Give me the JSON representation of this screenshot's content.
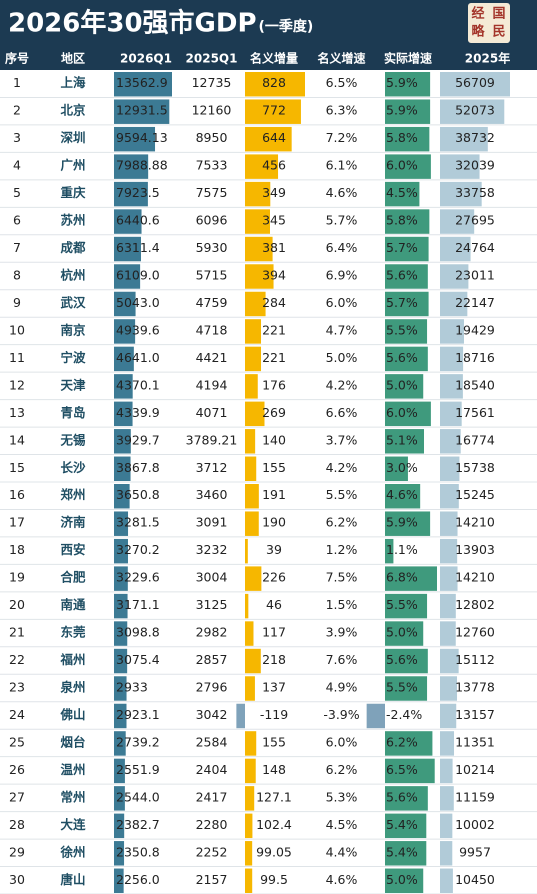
{
  "header": {
    "title": "2026年30强市GDP",
    "subtitle": "(一季度)",
    "logo": [
      "经",
      "国",
      "略",
      "民"
    ]
  },
  "table": {
    "columns": [
      "序号",
      "地区",
      "2026Q1",
      "2025Q1",
      "名义增量",
      "名义增速",
      "实际增速",
      "2025年"
    ],
    "rows": [
      [
        "1",
        "上海",
        "13562.9",
        "12735",
        "828",
        "6.5%",
        "5.9%",
        "56709"
      ],
      [
        "2",
        "北京",
        "12931.5",
        "12160",
        "772",
        "6.3%",
        "5.9%",
        "52073"
      ],
      [
        "3",
        "深圳",
        "9594.13",
        "8950",
        "644",
        "7.2%",
        "5.8%",
        "38732"
      ],
      [
        "4",
        "广州",
        "7988.88",
        "7533",
        "456",
        "6.1%",
        "6.0%",
        "32039"
      ],
      [
        "5",
        "重庆",
        "7923.5",
        "7575",
        "349",
        "4.6%",
        "4.5%",
        "33758"
      ],
      [
        "6",
        "苏州",
        "6440.6",
        "6096",
        "345",
        "5.7%",
        "5.8%",
        "27695"
      ],
      [
        "7",
        "成都",
        "6311.4",
        "5930",
        "381",
        "6.4%",
        "5.7%",
        "24764"
      ],
      [
        "8",
        "杭州",
        "6109.0",
        "5715",
        "394",
        "6.9%",
        "5.6%",
        "23011"
      ],
      [
        "9",
        "武汉",
        "5043.0",
        "4759",
        "284",
        "6.0%",
        "5.7%",
        "22147"
      ],
      [
        "10",
        "南京",
        "4939.6",
        "4718",
        "221",
        "4.7%",
        "5.5%",
        "19429"
      ],
      [
        "11",
        "宁波",
        "4641.0",
        "4421",
        "221",
        "5.0%",
        "5.6%",
        "18716"
      ],
      [
        "12",
        "天津",
        "4370.1",
        "4194",
        "176",
        "4.2%",
        "5.0%",
        "18540"
      ],
      [
        "13",
        "青岛",
        "4339.9",
        "4071",
        "269",
        "6.6%",
        "6.0%",
        "17561"
      ],
      [
        "14",
        "无锡",
        "3929.7",
        "3789.21",
        "140",
        "3.7%",
        "5.1%",
        "16774"
      ],
      [
        "15",
        "长沙",
        "3867.8",
        "3712",
        "155",
        "4.2%",
        "3.0%",
        "15738"
      ],
      [
        "16",
        "郑州",
        "3650.8",
        "3460",
        "191",
        "5.5%",
        "4.6%",
        "15245"
      ],
      [
        "17",
        "济南",
        "3281.5",
        "3091",
        "190",
        "6.2%",
        "5.9%",
        "14210"
      ],
      [
        "18",
        "西安",
        "3270.2",
        "3232",
        "39",
        "1.2%",
        "1.1%",
        "13903"
      ],
      [
        "19",
        "合肥",
        "3229.6",
        "3004",
        "226",
        "7.5%",
        "6.8%",
        "14210"
      ],
      [
        "20",
        "南通",
        "3171.1",
        "3125",
        "46",
        "1.5%",
        "5.5%",
        "12802"
      ],
      [
        "21",
        "东莞",
        "3098.8",
        "2982",
        "117",
        "3.9%",
        "5.0%",
        "12760"
      ],
      [
        "22",
        "福州",
        "3075.4",
        "2857",
        "218",
        "7.6%",
        "5.6%",
        "15112"
      ],
      [
        "23",
        "泉州",
        "2933",
        "2796",
        "137",
        "4.9%",
        "5.5%",
        "13778"
      ],
      [
        "24",
        "佛山",
        "2923.1",
        "3042",
        "-119",
        "-3.9%",
        "-2.4%",
        "13157"
      ],
      [
        "25",
        "烟台",
        "2739.2",
        "2584",
        "155",
        "6.0%",
        "6.2%",
        "11351"
      ],
      [
        "26",
        "温州",
        "2551.9",
        "2404",
        "148",
        "6.2%",
        "6.5%",
        "10214"
      ],
      [
        "27",
        "常州",
        "2544.0",
        "2417",
        "127.1",
        "5.3%",
        "5.6%",
        "11159"
      ],
      [
        "28",
        "大连",
        "2382.7",
        "2280",
        "102.4",
        "4.5%",
        "5.4%",
        "10002"
      ],
      [
        "29",
        "徐州",
        "2350.8",
        "2252",
        "99.05",
        "4.4%",
        "5.4%",
        "9957"
      ],
      [
        "30",
        "唐山",
        "2256.0",
        "2157",
        "99.5",
        "4.6%",
        "5.0%",
        "10450"
      ]
    ]
  }
}
